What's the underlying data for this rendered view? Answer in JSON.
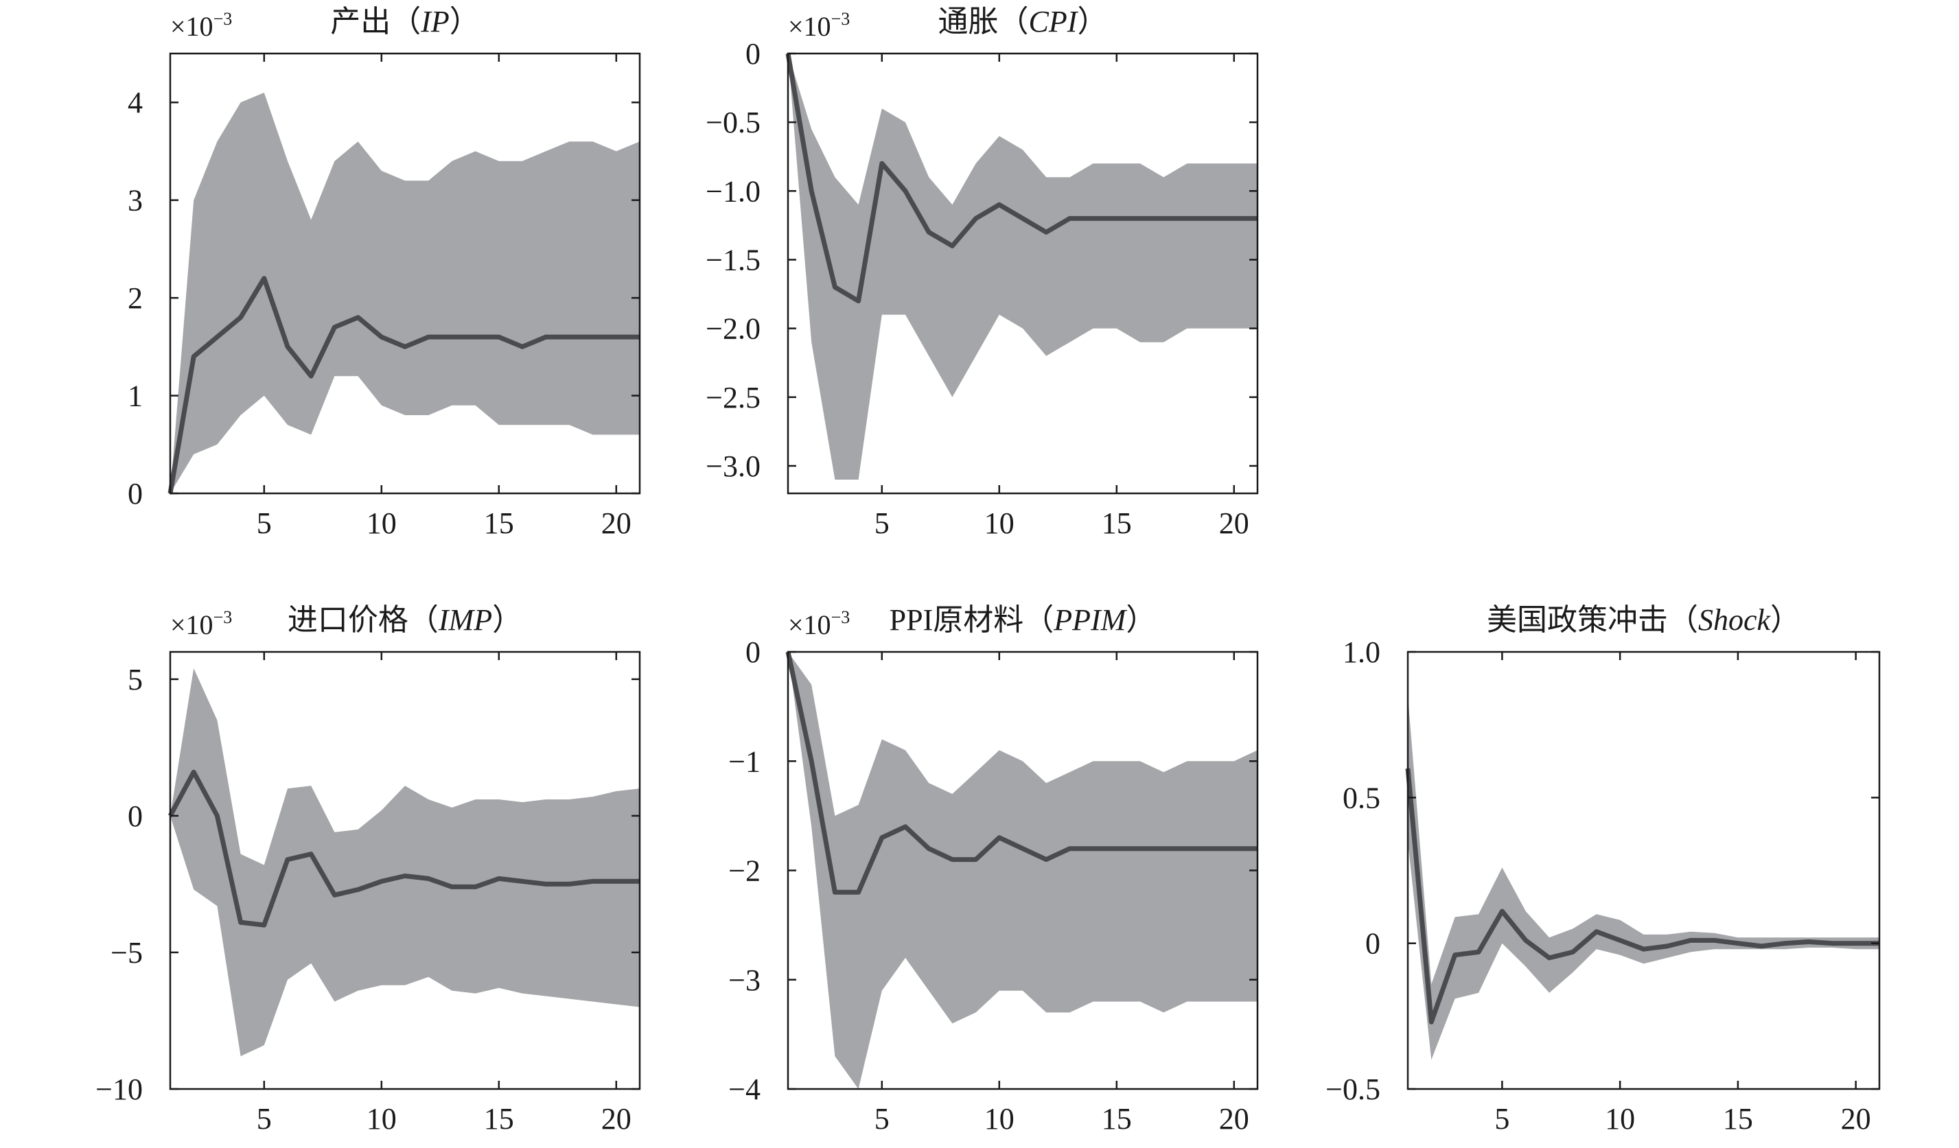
{
  "chart_data": [
    {
      "type": "area",
      "title": {
        "prefix": "产出（",
        "var": "IP",
        "suffix": "）"
      },
      "exponent": {
        "base": "×10",
        "power": "−3"
      },
      "x": [
        1,
        2,
        3,
        4,
        5,
        6,
        7,
        8,
        9,
        10,
        11,
        12,
        13,
        14,
        15,
        16,
        17,
        18,
        19,
        20,
        21
      ],
      "series": [
        {
          "role": "median",
          "values": [
            0,
            1.4,
            1.6,
            1.8,
            2.2,
            1.5,
            1.2,
            1.7,
            1.8,
            1.6,
            1.5,
            1.6,
            1.6,
            1.6,
            1.6,
            1.5,
            1.6,
            1.6,
            1.6,
            1.6,
            1.6
          ]
        },
        {
          "role": "upper",
          "values": [
            0,
            3.0,
            3.6,
            4.0,
            4.1,
            3.4,
            2.8,
            3.4,
            3.6,
            3.3,
            3.2,
            3.2,
            3.4,
            3.5,
            3.4,
            3.4,
            3.5,
            3.6,
            3.6,
            3.5,
            3.6
          ]
        },
        {
          "role": "lower",
          "values": [
            0,
            0.4,
            0.5,
            0.8,
            1.0,
            0.7,
            0.6,
            1.2,
            1.2,
            0.9,
            0.8,
            0.8,
            0.9,
            0.9,
            0.7,
            0.7,
            0.7,
            0.7,
            0.6,
            0.6,
            0.6
          ]
        }
      ],
      "xlim": [
        1,
        21
      ],
      "ylim": [
        0,
        4.5
      ],
      "xticks": [
        5,
        10,
        15,
        20
      ],
      "xtick_labels": [
        "5",
        "10",
        "15",
        "20"
      ],
      "yticks": [
        0,
        1,
        2,
        3,
        4
      ],
      "ytick_labels": [
        "0",
        "1",
        "2",
        "3",
        "4"
      ],
      "grid": false
    },
    {
      "type": "area",
      "title": {
        "prefix": "通胀（",
        "var": "CPI",
        "suffix": "）"
      },
      "exponent": {
        "base": "×10",
        "power": "−3"
      },
      "x": [
        1,
        2,
        3,
        4,
        5,
        6,
        7,
        8,
        9,
        10,
        11,
        12,
        13,
        14,
        15,
        16,
        17,
        18,
        19,
        20,
        21
      ],
      "series": [
        {
          "role": "median",
          "values": [
            0,
            -1.0,
            -1.7,
            -1.8,
            -0.8,
            -1.0,
            -1.3,
            -1.4,
            -1.2,
            -1.1,
            -1.2,
            -1.3,
            -1.2,
            -1.2,
            -1.2,
            -1.2,
            -1.2,
            -1.2,
            -1.2,
            -1.2,
            -1.2
          ]
        },
        {
          "role": "upper",
          "values": [
            0,
            -0.55,
            -0.9,
            -1.1,
            -0.4,
            -0.5,
            -0.9,
            -1.1,
            -0.8,
            -0.6,
            -0.7,
            -0.9,
            -0.9,
            -0.8,
            -0.8,
            -0.8,
            -0.9,
            -0.8,
            -0.8,
            -0.8,
            -0.8
          ]
        },
        {
          "role": "lower",
          "values": [
            0,
            -2.1,
            -3.1,
            -3.1,
            -1.9,
            -1.9,
            -2.2,
            -2.5,
            -2.2,
            -1.9,
            -2.0,
            -2.2,
            -2.1,
            -2.0,
            -2.0,
            -2.1,
            -2.1,
            -2.0,
            -2.0,
            -2.0,
            -2.0
          ]
        }
      ],
      "xlim": [
        1,
        21
      ],
      "ylim": [
        -3.2,
        0
      ],
      "xticks": [
        5,
        10,
        15,
        20
      ],
      "xtick_labels": [
        "5",
        "10",
        "15",
        "20"
      ],
      "yticks": [
        0,
        -0.5,
        -1.0,
        -1.5,
        -2.0,
        -2.5,
        -3.0
      ],
      "ytick_labels": [
        "0",
        "−0.5",
        "−1.0",
        "−1.5",
        "−2.0",
        "−2.5",
        "−3.0"
      ],
      "grid": false
    },
    {
      "type": "area",
      "title": {
        "prefix": "进口价格（",
        "var": "IMP",
        "suffix": "）"
      },
      "exponent": {
        "base": "×10",
        "power": "−3"
      },
      "x": [
        1,
        2,
        3,
        4,
        5,
        6,
        7,
        8,
        9,
        10,
        11,
        12,
        13,
        14,
        15,
        16,
        17,
        18,
        19,
        20,
        21
      ],
      "series": [
        {
          "role": "median",
          "values": [
            0,
            1.6,
            0,
            -3.9,
            -4.0,
            -1.6,
            -1.4,
            -2.9,
            -2.7,
            -2.4,
            -2.2,
            -2.3,
            -2.6,
            -2.6,
            -2.3,
            -2.4,
            -2.5,
            -2.5,
            -2.4,
            -2.4,
            -2.4
          ]
        },
        {
          "role": "upper",
          "values": [
            0,
            5.4,
            3.5,
            -1.4,
            -1.8,
            1.0,
            1.1,
            -0.6,
            -0.5,
            0.2,
            1.1,
            0.6,
            0.3,
            0.6,
            0.6,
            0.5,
            0.6,
            0.6,
            0.7,
            0.9,
            1.0
          ]
        },
        {
          "role": "lower",
          "values": [
            0,
            -2.7,
            -3.3,
            -8.8,
            -8.4,
            -6.0,
            -5.4,
            -6.8,
            -6.4,
            -6.2,
            -6.2,
            -5.9,
            -6.4,
            -6.5,
            -6.3,
            -6.5,
            -6.6,
            -6.7,
            -6.8,
            -6.9,
            -7.0
          ]
        }
      ],
      "xlim": [
        1,
        21
      ],
      "ylim": [
        -10,
        6
      ],
      "xticks": [
        5,
        10,
        15,
        20
      ],
      "xtick_labels": [
        "5",
        "10",
        "15",
        "20"
      ],
      "yticks": [
        5,
        0,
        -5,
        -10
      ],
      "ytick_labels": [
        "5",
        "0",
        "−5",
        "−10"
      ],
      "grid": false
    },
    {
      "type": "area",
      "title": {
        "prefix": "PPI原材料（",
        "var": "PPIM",
        "suffix": "）"
      },
      "exponent": {
        "base": "×10",
        "power": "−3"
      },
      "x": [
        1,
        2,
        3,
        4,
        5,
        6,
        7,
        8,
        9,
        10,
        11,
        12,
        13,
        14,
        15,
        16,
        17,
        18,
        19,
        20,
        21
      ],
      "series": [
        {
          "role": "median",
          "values": [
            0,
            -1.0,
            -2.2,
            -2.2,
            -1.7,
            -1.6,
            -1.8,
            -1.9,
            -1.9,
            -1.7,
            -1.8,
            -1.9,
            -1.8,
            -1.8,
            -1.8,
            -1.8,
            -1.8,
            -1.8,
            -1.8,
            -1.8,
            -1.8
          ]
        },
        {
          "role": "upper",
          "values": [
            0,
            -0.3,
            -1.5,
            -1.4,
            -0.8,
            -0.9,
            -1.2,
            -1.3,
            -1.1,
            -0.9,
            -1.0,
            -1.2,
            -1.1,
            -1.0,
            -1.0,
            -1.0,
            -1.1,
            -1.0,
            -1.0,
            -1.0,
            -0.9
          ]
        },
        {
          "role": "lower",
          "values": [
            0,
            -1.6,
            -3.7,
            -4.0,
            -3.1,
            -2.8,
            -3.1,
            -3.4,
            -3.3,
            -3.1,
            -3.1,
            -3.3,
            -3.3,
            -3.2,
            -3.2,
            -3.2,
            -3.3,
            -3.2,
            -3.2,
            -3.2,
            -3.2
          ]
        }
      ],
      "xlim": [
        1,
        21
      ],
      "ylim": [
        -4,
        0
      ],
      "xticks": [
        5,
        10,
        15,
        20
      ],
      "xtick_labels": [
        "5",
        "10",
        "15",
        "20"
      ],
      "yticks": [
        0,
        -1,
        -2,
        -3,
        -4
      ],
      "ytick_labels": [
        "0",
        "−1",
        "−2",
        "−3",
        "−4"
      ],
      "grid": false
    },
    {
      "type": "area",
      "title": {
        "prefix": "美国政策冲击（",
        "var": "Shock",
        "suffix": "）"
      },
      "x": [
        1,
        2,
        3,
        4,
        5,
        6,
        7,
        8,
        9,
        10,
        11,
        12,
        13,
        14,
        15,
        16,
        17,
        18,
        19,
        20,
        21
      ],
      "series": [
        {
          "role": "median",
          "values": [
            0.6,
            -0.27,
            -0.04,
            -0.03,
            0.11,
            0.01,
            -0.05,
            -0.03,
            0.04,
            0.01,
            -0.02,
            -0.01,
            0.01,
            0.01,
            0.0,
            -0.01,
            0.0,
            0.005,
            0.0,
            0.0,
            0.0
          ]
        },
        {
          "role": "upper",
          "values": [
            0.85,
            -0.14,
            0.09,
            0.1,
            0.26,
            0.11,
            0.02,
            0.05,
            0.1,
            0.08,
            0.03,
            0.03,
            0.04,
            0.035,
            0.02,
            0.02,
            0.02,
            0.02,
            0.02,
            0.02,
            0.02
          ]
        },
        {
          "role": "lower",
          "values": [
            0.35,
            -0.4,
            -0.19,
            -0.17,
            0.0,
            -0.08,
            -0.17,
            -0.1,
            -0.02,
            -0.04,
            -0.07,
            -0.05,
            -0.03,
            -0.02,
            -0.02,
            -0.02,
            -0.02,
            -0.015,
            -0.015,
            -0.02,
            -0.02
          ]
        }
      ],
      "xlim": [
        1,
        21
      ],
      "ylim": [
        -0.5,
        1.0
      ],
      "xticks": [
        5,
        10,
        15,
        20
      ],
      "xtick_labels": [
        "5",
        "10",
        "15",
        "20"
      ],
      "yticks": [
        1.0,
        0.5,
        0,
        -0.5
      ],
      "ytick_labels": [
        "1.0",
        "0.5",
        "0",
        "−0.5"
      ],
      "grid": false
    }
  ],
  "style": {
    "band_color": "#a5a6a9",
    "line_color": "#4a4b4e",
    "axis_color": "#1a1a1a"
  }
}
